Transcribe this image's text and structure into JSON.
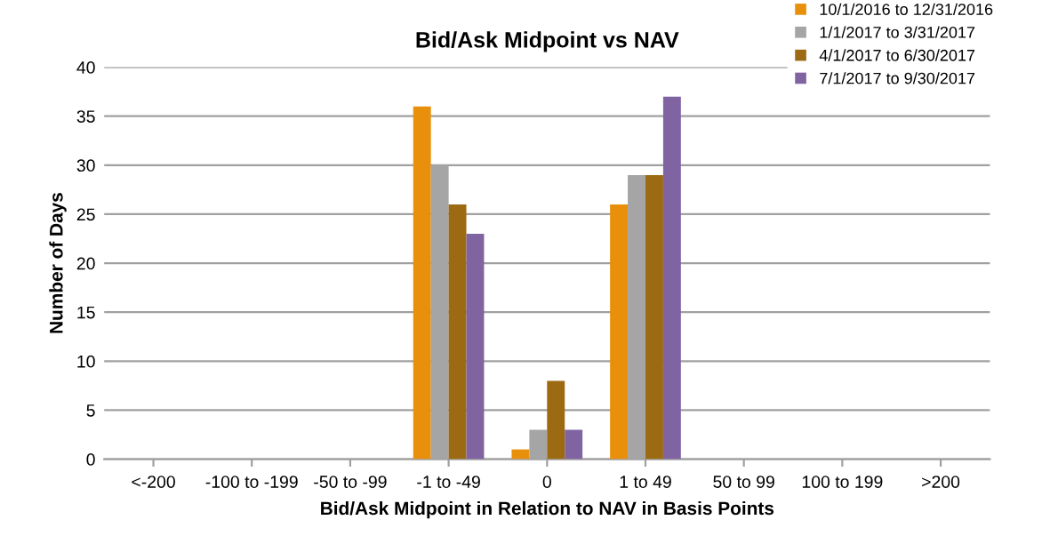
{
  "chart_data": {
    "type": "bar",
    "title": "Bid/Ask Midpoint vs NAV",
    "xlabel": "Bid/Ask Midpoint in Relation to NAV in Basis Points",
    "ylabel": "Number of Days",
    "categories": [
      "<-200",
      "-100 to -199",
      "-50 to -99",
      "-1 to -49",
      "0",
      "1 to 49",
      "50 to 99",
      "100 to 199",
      ">200"
    ],
    "series": [
      {
        "name": "10/1/2016 to 12/31/2016",
        "color": "#e8900c",
        "values": [
          0,
          0,
          0,
          36,
          1,
          26,
          0,
          0,
          0
        ]
      },
      {
        "name": "1/1/2017 to 3/31/2017",
        "color": "#a5a5a5",
        "values": [
          0,
          0,
          0,
          30,
          3,
          29,
          0,
          0,
          0
        ]
      },
      {
        "name": "4/1/2017 to 6/30/2017",
        "color": "#9c6a12",
        "values": [
          0,
          0,
          0,
          26,
          8,
          29,
          0,
          0,
          0
        ]
      },
      {
        "name": "7/1/2017 to 9/30/2017",
        "color": "#8064a2",
        "values": [
          0,
          0,
          0,
          23,
          3,
          37,
          0,
          0,
          0
        ]
      }
    ],
    "ylim": [
      0,
      40
    ],
    "yticks": [
      0,
      5,
      10,
      15,
      20,
      25,
      30,
      35,
      40
    ],
    "grid": "y",
    "legend": "top right"
  }
}
